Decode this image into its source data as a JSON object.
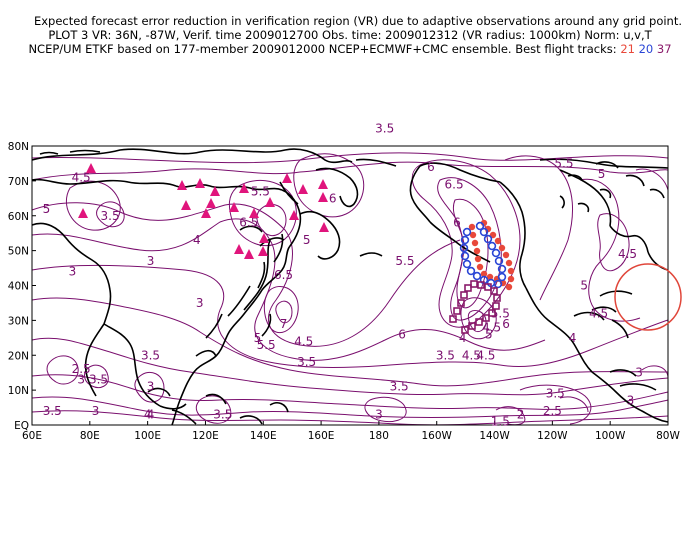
{
  "header": {
    "line1": "Expected forecast error reduction in verification region (VR) due to adaptive observations around any grid point.",
    "line2": "PLOT 3 VR: 36N, -87W, Verif. time 2009012700 Obs. time: 2009012312 (VR radius: 1000km) Norm: u,v,T",
    "line3_prefix": "NCEP/UM ETKF based on 177-member 2009012000 NCEP+ECMWF+CMC ensemble. Best flight tracks:",
    "track_numbers": [
      "21",
      "20",
      "37"
    ]
  },
  "axes": {
    "lat_labels": [
      "80N",
      "70N",
      "60N",
      "50N",
      "40N",
      "30N",
      "20N",
      "10N",
      "EQ"
    ],
    "lon_labels": [
      "60E",
      "80E",
      "100E",
      "120E",
      "140E",
      "160E",
      "180",
      "160W",
      "140W",
      "120W",
      "100W",
      "80W"
    ]
  },
  "contour_labels": [
    {
      "text": "4.5",
      "lon": 77,
      "lat": 71
    },
    {
      "text": "5",
      "lon": 65,
      "lat": 62
    },
    {
      "text": "3.5",
      "lon": 87,
      "lat": 60
    },
    {
      "text": "3",
      "lon": 74,
      "lat": 44
    },
    {
      "text": "4",
      "lon": 117,
      "lat": 53
    },
    {
      "text": "3",
      "lon": 101,
      "lat": 47
    },
    {
      "text": "3",
      "lon": 118,
      "lat": 35
    },
    {
      "text": "5.5",
      "lon": 139,
      "lat": 67
    },
    {
      "text": "6.5",
      "lon": 135,
      "lat": 58
    },
    {
      "text": "6",
      "lon": 164,
      "lat": 65
    },
    {
      "text": "5",
      "lon": 155,
      "lat": 53
    },
    {
      "text": "6.5",
      "lon": 147,
      "lat": 43
    },
    {
      "text": "7",
      "lon": 147,
      "lat": 29
    },
    {
      "text": "5",
      "lon": 138,
      "lat": 25
    },
    {
      "text": "5.5",
      "lon": 141,
      "lat": 23
    },
    {
      "text": "4.5",
      "lon": 154,
      "lat": 24
    },
    {
      "text": "3.5",
      "lon": 155,
      "lat": 18
    },
    {
      "text": "5.5",
      "lon": 189,
      "lat": 47
    },
    {
      "text": "6",
      "lon": 188,
      "lat": 26
    },
    {
      "text": "3.5",
      "lon": 187,
      "lat": 11
    },
    {
      "text": "3",
      "lon": 180,
      "lat": 3
    },
    {
      "text": "3.5",
      "lon": 203,
      "lat": 20
    },
    {
      "text": "1.5",
      "lon": 222,
      "lat": 1
    },
    {
      "text": "2",
      "lon": 229,
      "lat": 3
    },
    {
      "text": "2.5",
      "lon": 240,
      "lat": 4
    },
    {
      "text": "3.5",
      "lon": 241,
      "lat": 9
    },
    {
      "text": "6",
      "lon": 207,
      "lat": 58
    },
    {
      "text": "6",
      "lon": 198,
      "lat": 74
    },
    {
      "text": "6.5",
      "lon": 206,
      "lat": 69
    },
    {
      "text": "5.5",
      "lon": 244,
      "lat": 75
    },
    {
      "text": "5",
      "lon": 257,
      "lat": 72
    },
    {
      "text": "4.5",
      "lon": 266,
      "lat": 49
    },
    {
      "text": "5",
      "lon": 251,
      "lat": 40
    },
    {
      "text": "4.5",
      "lon": 256,
      "lat": 32
    },
    {
      "text": "4",
      "lon": 247,
      "lat": 25
    },
    {
      "text": "3",
      "lon": 270,
      "lat": 15
    },
    {
      "text": "3",
      "lon": 267,
      "lat": 7
    },
    {
      "text": "4.5",
      "lon": 219,
      "lat": 28
    },
    {
      "text": "5",
      "lon": 218,
      "lat": 26
    },
    {
      "text": "5.5",
      "lon": 222,
      "lat": 32
    },
    {
      "text": "6",
      "lon": 224,
      "lat": 29
    },
    {
      "text": "4",
      "lon": 209,
      "lat": 25
    },
    {
      "text": "4.5",
      "lon": 212,
      "lat": 20
    },
    {
      "text": "4.5",
      "lon": 217,
      "lat": 20
    },
    {
      "text": "3.5",
      "lon": 182,
      "lat": 85
    },
    {
      "text": "2.5",
      "lon": 77,
      "lat": 16
    },
    {
      "text": "3",
      "lon": 77,
      "lat": 13
    },
    {
      "text": "3.5",
      "lon": 83,
      "lat": 13
    },
    {
      "text": "3",
      "lon": 82,
      "lat": 4
    },
    {
      "text": "3.5",
      "lon": 67,
      "lat": 4
    },
    {
      "text": "4",
      "lon": 101,
      "lat": 3
    },
    {
      "text": "3",
      "lon": 101,
      "lat": 11
    },
    {
      "text": "3.5",
      "lon": 101,
      "lat": 20
    },
    {
      "text": "3.5",
      "lon": 126,
      "lat": 3
    },
    {
      "text": "5",
      "lon": 128,
      "lat": 3
    },
    {
      "text": "4",
      "lon": 100,
      "lat": 3
    }
  ],
  "colors": {
    "contour": "#7a0f6e",
    "triangles": "#e0157c",
    "track21": "#e8483a",
    "track20": "#2a46d6",
    "track37": "#8a1a6a",
    "vr_circle": "#e0463a"
  }
}
